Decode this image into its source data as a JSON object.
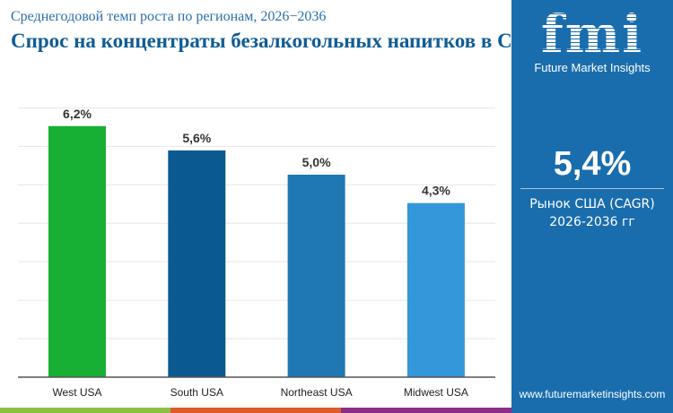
{
  "header": {
    "subtitle": "Среднегодовой темп роста по регионам, 2026−2036",
    "title": "Спрос на концентраты безалкогольных напитков в США"
  },
  "sidebar": {
    "logo_text": "fmi",
    "brand": "Future Market Insights",
    "cagr_value": "5,4%",
    "cagr_label": "Рынок США (CAGR)",
    "cagr_period": "2026-2036 гг",
    "url": "www.futuremarketinsights.com",
    "background": "#1a6dad"
  },
  "footer_stripes": [
    "#8cc043",
    "#e05a2b",
    "#8a2f8a"
  ],
  "chart_data": {
    "type": "bar",
    "categories": [
      "West USA",
      "South USA",
      "Northeast USA",
      "Midwest USA"
    ],
    "values": [
      6.2,
      5.6,
      5.0,
      4.3
    ],
    "data_labels": [
      "6,2%",
      "5,6%",
      "5,0%",
      "4,3%"
    ],
    "colors": [
      "#17b035",
      "#0b5a8f",
      "#1f77b3",
      "#3497d9"
    ],
    "ylim": [
      0,
      7
    ],
    "grid": true,
    "xlabel": "",
    "ylabel": ""
  }
}
